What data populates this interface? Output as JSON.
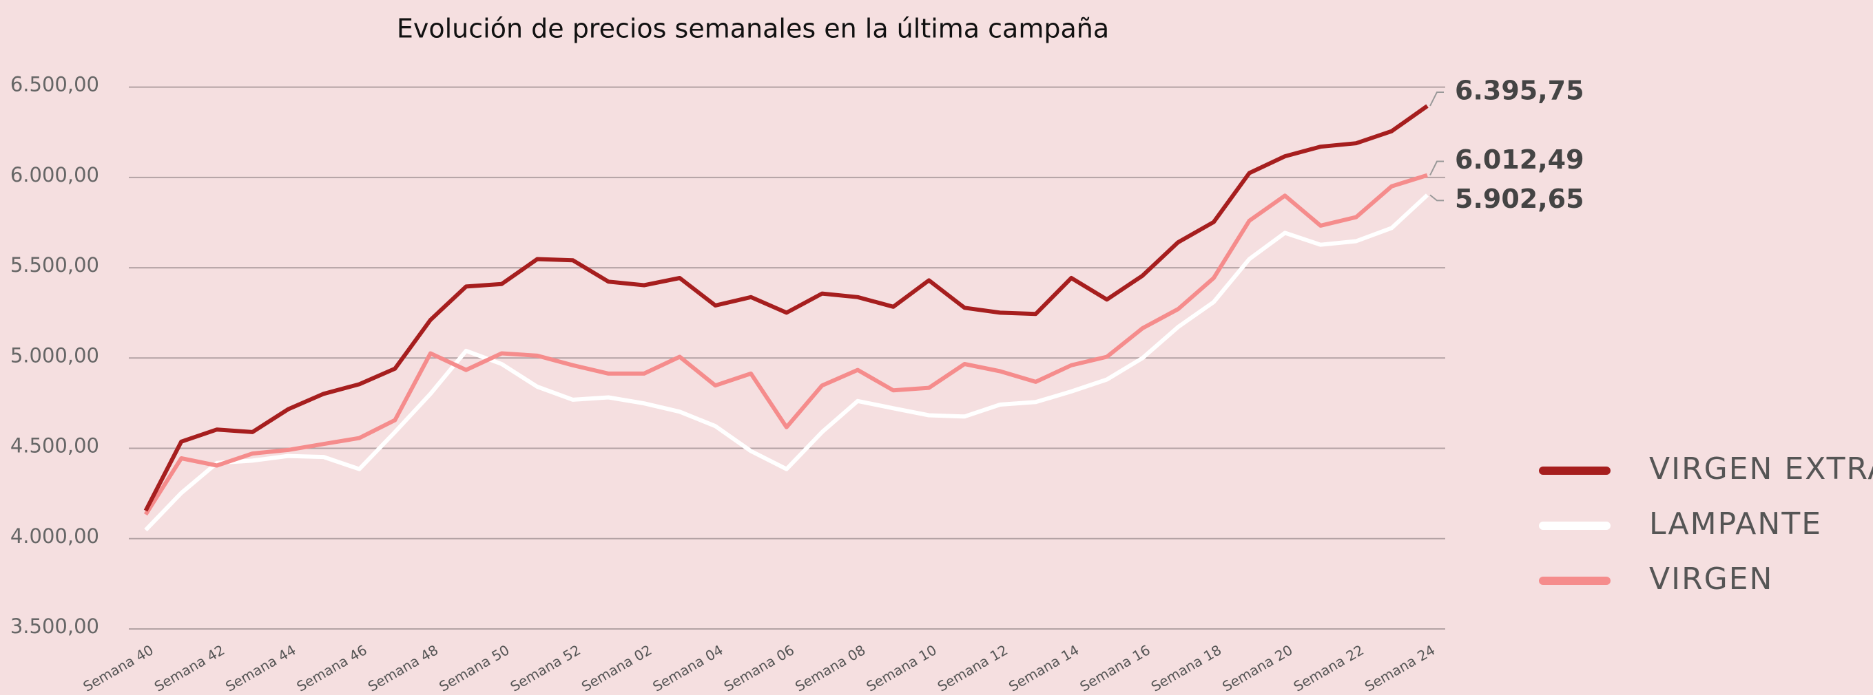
{
  "chart_data": {
    "type": "line",
    "title": "Evolución de precios semanales en la última campaña",
    "categories": [
      "Semana 40",
      null,
      "Semana 42",
      null,
      "Semana 44",
      null,
      "Semana 46",
      null,
      "Semana 48",
      null,
      "Semana 50",
      null,
      "Semana 52",
      null,
      "Semana 02",
      null,
      "Semana 04",
      null,
      "Semana 06",
      null,
      "Semana 08",
      null,
      "Semana 10",
      null,
      "Semana 12",
      null,
      "Semana 14",
      null,
      "Semana 16",
      null,
      "Semana 18",
      null,
      "Semana 20",
      null,
      "Semana 22",
      null,
      "Semana 24"
    ],
    "series": [
      {
        "name": "VIRGEN EXTRA",
        "color": "#a61e1e",
        "values": [
          4155,
          4537,
          4604,
          4590,
          4716,
          4802,
          4855,
          4941,
          5211,
          5396,
          5410,
          5548,
          5541,
          5423,
          5403,
          5443,
          5291,
          5337,
          5251,
          5357,
          5337,
          5284,
          5430,
          5278,
          5251,
          5244,
          5443,
          5324,
          5456,
          5641,
          5753,
          6024,
          6117,
          6170,
          6189,
          6256,
          6395.75
        ],
        "value_labels": [
          null,
          null,
          null,
          null,
          null,
          null,
          null,
          null,
          null,
          null,
          null,
          null,
          null,
          null,
          null,
          null,
          null,
          null,
          null,
          null,
          null,
          null,
          null,
          null,
          null,
          null,
          null,
          null,
          null,
          null,
          null,
          null,
          null,
          null,
          null,
          null,
          "6.395,75"
        ]
      },
      {
        "name": "LAMPANTE",
        "color": "#ffffff",
        "values": [
          4048,
          4253,
          4419,
          4432,
          4458,
          4452,
          4385,
          4590,
          4802,
          5040,
          4967,
          4841,
          4769,
          4782,
          4749,
          4703,
          4623,
          4485,
          4385,
          4590,
          4762,
          4722,
          4683,
          4676,
          4742,
          4756,
          4815,
          4881,
          5000,
          5172,
          5310,
          5548,
          5693,
          5627,
          5647,
          5720,
          5902.65
        ],
        "value_labels": [
          null,
          null,
          null,
          null,
          null,
          null,
          null,
          null,
          null,
          null,
          null,
          null,
          null,
          null,
          null,
          null,
          null,
          null,
          null,
          null,
          null,
          null,
          null,
          null,
          null,
          null,
          null,
          null,
          null,
          null,
          null,
          null,
          null,
          null,
          null,
          null,
          "5.902,65"
        ]
      },
      {
        "name": "VIRGEN",
        "color": "#f58c8c",
        "values": [
          4134,
          4445,
          4405,
          4471,
          4491,
          4524,
          4557,
          4656,
          5026,
          4934,
          5026,
          5013,
          4960,
          4914,
          4914,
          5007,
          4848,
          4914,
          4617,
          4848,
          4934,
          4821,
          4835,
          4967,
          4927,
          4868,
          4960,
          5007,
          5165,
          5271,
          5443,
          5760,
          5899,
          5733,
          5780,
          5951,
          6012.49
        ],
        "value_labels": [
          null,
          null,
          null,
          null,
          null,
          null,
          null,
          null,
          null,
          null,
          null,
          null,
          null,
          null,
          null,
          null,
          null,
          null,
          null,
          null,
          null,
          null,
          null,
          null,
          null,
          null,
          null,
          null,
          null,
          null,
          null,
          null,
          null,
          null,
          null,
          null,
          "6.012,49"
        ]
      }
    ],
    "ylim": [
      3500,
      6500
    ],
    "yticks": [
      {
        "value": 3500,
        "label": "3.500,00"
      },
      {
        "value": 4000,
        "label": "4.000,00"
      },
      {
        "value": 4500,
        "label": "4.500,00"
      },
      {
        "value": 5000,
        "label": "5.000,00"
      },
      {
        "value": 5500,
        "label": "5.500,00"
      },
      {
        "value": 6000,
        "label": "6.000,00"
      },
      {
        "value": 6500,
        "label": "6.500,00"
      }
    ],
    "grid": true,
    "legend": "right"
  }
}
